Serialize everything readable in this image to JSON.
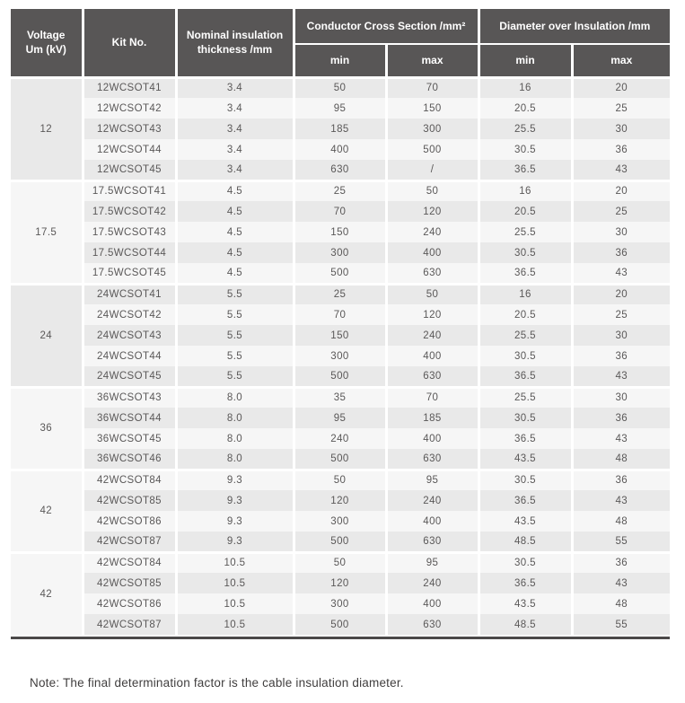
{
  "table": {
    "header": {
      "voltage_line1": "Voltage",
      "voltage_line2": "Um (kV)",
      "kit": "Kit No.",
      "nominal_line1": "Nominal insulation",
      "nominal_line2": "thickness /mm",
      "conductor_group": "Conductor Cross Section /mm²",
      "diameter_group": "Diameter over Insulation /mm",
      "min": "min",
      "max": "max"
    },
    "groups": [
      {
        "voltage": "12",
        "rows": [
          {
            "kit": "12WCSOT41",
            "thickness": "3.4",
            "cond_min": "50",
            "cond_max": "70",
            "dia_min": "16",
            "dia_max": "20"
          },
          {
            "kit": "12WCSOT42",
            "thickness": "3.4",
            "cond_min": "95",
            "cond_max": "150",
            "dia_min": "20.5",
            "dia_max": "25"
          },
          {
            "kit": "12WCSOT43",
            "thickness": "3.4",
            "cond_min": "185",
            "cond_max": "300",
            "dia_min": "25.5",
            "dia_max": "30"
          },
          {
            "kit": "12WCSOT44",
            "thickness": "3.4",
            "cond_min": "400",
            "cond_max": "500",
            "dia_min": "30.5",
            "dia_max": "36"
          },
          {
            "kit": "12WCSOT45",
            "thickness": "3.4",
            "cond_min": "630",
            "cond_max": "/",
            "dia_min": "36.5",
            "dia_max": "43"
          }
        ]
      },
      {
        "voltage": "17.5",
        "rows": [
          {
            "kit": "17.5WCSOT41",
            "thickness": "4.5",
            "cond_min": "25",
            "cond_max": "50",
            "dia_min": "16",
            "dia_max": "20"
          },
          {
            "kit": "17.5WCSOT42",
            "thickness": "4.5",
            "cond_min": "70",
            "cond_max": "120",
            "dia_min": "20.5",
            "dia_max": "25"
          },
          {
            "kit": "17.5WCSOT43",
            "thickness": "4.5",
            "cond_min": "150",
            "cond_max": "240",
            "dia_min": "25.5",
            "dia_max": "30"
          },
          {
            "kit": "17.5WCSOT44",
            "thickness": "4.5",
            "cond_min": "300",
            "cond_max": "400",
            "dia_min": "30.5",
            "dia_max": "36"
          },
          {
            "kit": "17.5WCSOT45",
            "thickness": "4.5",
            "cond_min": "500",
            "cond_max": "630",
            "dia_min": "36.5",
            "dia_max": "43"
          }
        ]
      },
      {
        "voltage": "24",
        "rows": [
          {
            "kit": "24WCSOT41",
            "thickness": "5.5",
            "cond_min": "25",
            "cond_max": "50",
            "dia_min": "16",
            "dia_max": "20"
          },
          {
            "kit": "24WCSOT42",
            "thickness": "5.5",
            "cond_min": "70",
            "cond_max": "120",
            "dia_min": "20.5",
            "dia_max": "25"
          },
          {
            "kit": "24WCSOT43",
            "thickness": "5.5",
            "cond_min": "150",
            "cond_max": "240",
            "dia_min": "25.5",
            "dia_max": "30"
          },
          {
            "kit": "24WCSOT44",
            "thickness": "5.5",
            "cond_min": "300",
            "cond_max": "400",
            "dia_min": "30.5",
            "dia_max": "36"
          },
          {
            "kit": "24WCSOT45",
            "thickness": "5.5",
            "cond_min": "500",
            "cond_max": "630",
            "dia_min": "36.5",
            "dia_max": "43"
          }
        ]
      },
      {
        "voltage": "36",
        "rows": [
          {
            "kit": "36WCSOT43",
            "thickness": "8.0",
            "cond_min": "35",
            "cond_max": "70",
            "dia_min": "25.5",
            "dia_max": "30"
          },
          {
            "kit": "36WCSOT44",
            "thickness": "8.0",
            "cond_min": "95",
            "cond_max": "185",
            "dia_min": "30.5",
            "dia_max": "36"
          },
          {
            "kit": "36WCSOT45",
            "thickness": "8.0",
            "cond_min": "240",
            "cond_max": "400",
            "dia_min": "36.5",
            "dia_max": "43"
          },
          {
            "kit": "36WCSOT46",
            "thickness": "8.0",
            "cond_min": "500",
            "cond_max": "630",
            "dia_min": "43.5",
            "dia_max": "48"
          }
        ]
      },
      {
        "voltage": "42",
        "rows": [
          {
            "kit": "42WCSOT84",
            "thickness": "9.3",
            "cond_min": "50",
            "cond_max": "95",
            "dia_min": "30.5",
            "dia_max": "36"
          },
          {
            "kit": "42WCSOT85",
            "thickness": "9.3",
            "cond_min": "120",
            "cond_max": "240",
            "dia_min": "36.5",
            "dia_max": "43"
          },
          {
            "kit": "42WCSOT86",
            "thickness": "9.3",
            "cond_min": "300",
            "cond_max": "400",
            "dia_min": "43.5",
            "dia_max": "48"
          },
          {
            "kit": "42WCSOT87",
            "thickness": "9.3",
            "cond_min": "500",
            "cond_max": "630",
            "dia_min": "48.5",
            "dia_max": "55"
          }
        ]
      },
      {
        "voltage": "42",
        "rows": [
          {
            "kit": "42WCSOT84",
            "thickness": "10.5",
            "cond_min": "50",
            "cond_max": "95",
            "dia_min": "30.5",
            "dia_max": "36"
          },
          {
            "kit": "42WCSOT85",
            "thickness": "10.5",
            "cond_min": "120",
            "cond_max": "240",
            "dia_min": "36.5",
            "dia_max": "43"
          },
          {
            "kit": "42WCSOT86",
            "thickness": "10.5",
            "cond_min": "300",
            "cond_max": "400",
            "dia_min": "43.5",
            "dia_max": "48"
          },
          {
            "kit": "42WCSOT87",
            "thickness": "10.5",
            "cond_min": "500",
            "cond_max": "630",
            "dia_min": "48.5",
            "dia_max": "55"
          }
        ]
      }
    ]
  },
  "note": "Note: The final determination factor is the cable insulation diameter.",
  "colors": {
    "header_bg": "#585656",
    "header_text": "#ffffff",
    "row_dark": "#e9e9e9",
    "row_light": "#f6f6f6",
    "body_text": "#5a5858",
    "bottom_rule": "#4b4949"
  }
}
